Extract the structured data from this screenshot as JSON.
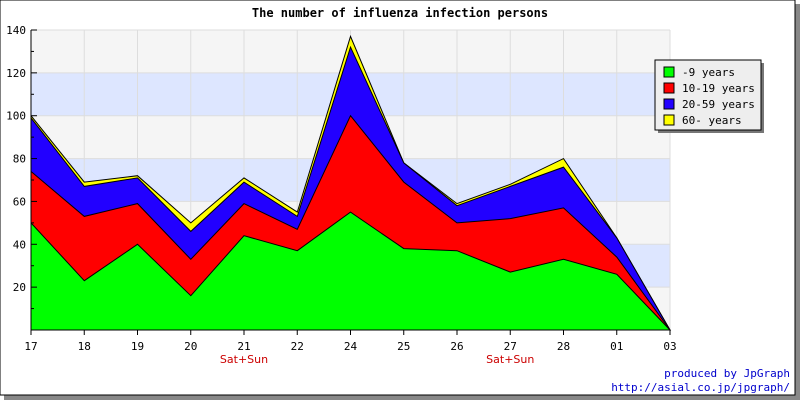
{
  "chart_data": {
    "type": "area",
    "stacked": true,
    "title": "The number of influenza infection persons",
    "categories": [
      "17",
      "18",
      "19",
      "20",
      "21",
      "22",
      "24",
      "25",
      "26",
      "27",
      "28",
      "01",
      "03"
    ],
    "weekend_labels": [
      {
        "category": "21",
        "text": "Sat+Sun"
      },
      {
        "category": "27",
        "text": "Sat+Sun"
      }
    ],
    "series": [
      {
        "name": "-9 years",
        "color": "#00ff00",
        "values": [
          50,
          23,
          40,
          16,
          44,
          37,
          55,
          38,
          37,
          27,
          33,
          26,
          0
        ]
      },
      {
        "name": "10-19 years",
        "color": "#ff0000",
        "values": [
          24,
          30,
          19,
          17,
          15,
          10,
          45,
          31,
          13,
          25,
          24,
          8,
          0
        ]
      },
      {
        "name": "20-59 years",
        "color": "#2200ff",
        "values": [
          25,
          14,
          12,
          13,
          10,
          6,
          32,
          9,
          8,
          15,
          19,
          9,
          0
        ]
      },
      {
        "name": "60- years",
        "color": "#ffff00",
        "values": [
          1,
          2,
          1,
          4,
          2,
          2,
          5,
          0,
          1,
          1,
          4,
          0,
          0
        ]
      }
    ],
    "y_ticks": [
      20,
      40,
      60,
      80,
      100,
      120,
      140
    ],
    "ylim": [
      0,
      140
    ],
    "legend_position": "top-right",
    "background_bands": [
      "#f5f5f5",
      "#dde6ff"
    ],
    "credits": [
      "produced by JpGraph",
      "http://asial.co.jp/jpgraph/"
    ]
  }
}
